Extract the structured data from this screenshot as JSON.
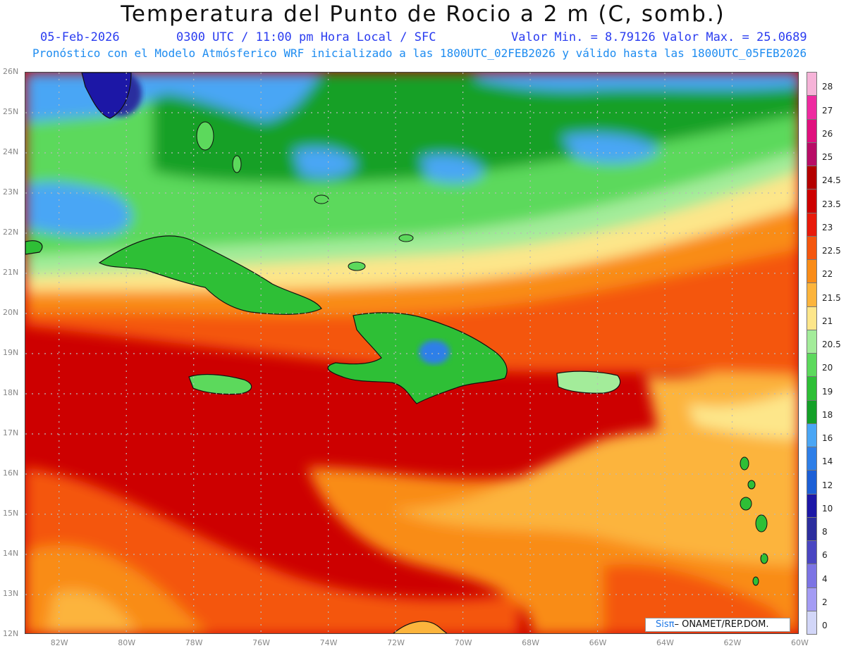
{
  "header": {
    "title": "Temperatura del Punto de Rocio a 2 m (C, somb.)",
    "date": "05-Feb-2026",
    "time": "0300 UTC / 11:00 pm Hora Local / SFC",
    "minmax": "Valor Min. = 8.79126  Valor Max. = 25.0689",
    "model_line": "Pronóstico con el Modelo Atmósferico WRF inicializado a las 1800UTC_02FEB2026 y válido hasta las  1800UTC_05FEB2026"
  },
  "map": {
    "lat_range": [
      12,
      26
    ],
    "lon_range": [
      -83,
      -60
    ],
    "lat_labels": [
      "26N",
      "25N",
      "24N",
      "23N",
      "22N",
      "21N",
      "20N",
      "19N",
      "18N",
      "17N",
      "16N",
      "15N",
      "14N",
      "13N",
      "12N"
    ],
    "lon_labels": [
      "82W",
      "80W",
      "78W",
      "76W",
      "74W",
      "72W",
      "70W",
      "68W",
      "66W",
      "64W",
      "62W",
      "60W"
    ],
    "gridlines": true
  },
  "legend": {
    "labels": [
      "28",
      "27",
      "26",
      "25",
      "24.5",
      "23.5",
      "23",
      "22.5",
      "22",
      "21.5",
      "21",
      "20.5",
      "20",
      "19",
      "18",
      "16",
      "14",
      "12",
      "10",
      "8",
      "6",
      "4",
      "2",
      "0"
    ],
    "colors": [
      "#f6b3d8",
      "#ee2aa0",
      "#e0107e",
      "#b80c66",
      "#b40000",
      "#cd0000",
      "#e81a0a",
      "#f4560e",
      "#f98c18",
      "#fcb43c",
      "#fde68a",
      "#a3ec9a",
      "#5cd95c",
      "#2ebf36",
      "#14a028",
      "#4aa6f5",
      "#2e7fe8",
      "#1c5fd6",
      "#1c17a6",
      "#2c2e9e",
      "#4a46c2",
      "#7c74e4",
      "#a49cf4",
      "#d2d6f8"
    ]
  },
  "credit": {
    "brand": "Sisπ",
    "text": "– ONAMET/REP.DOM."
  }
}
